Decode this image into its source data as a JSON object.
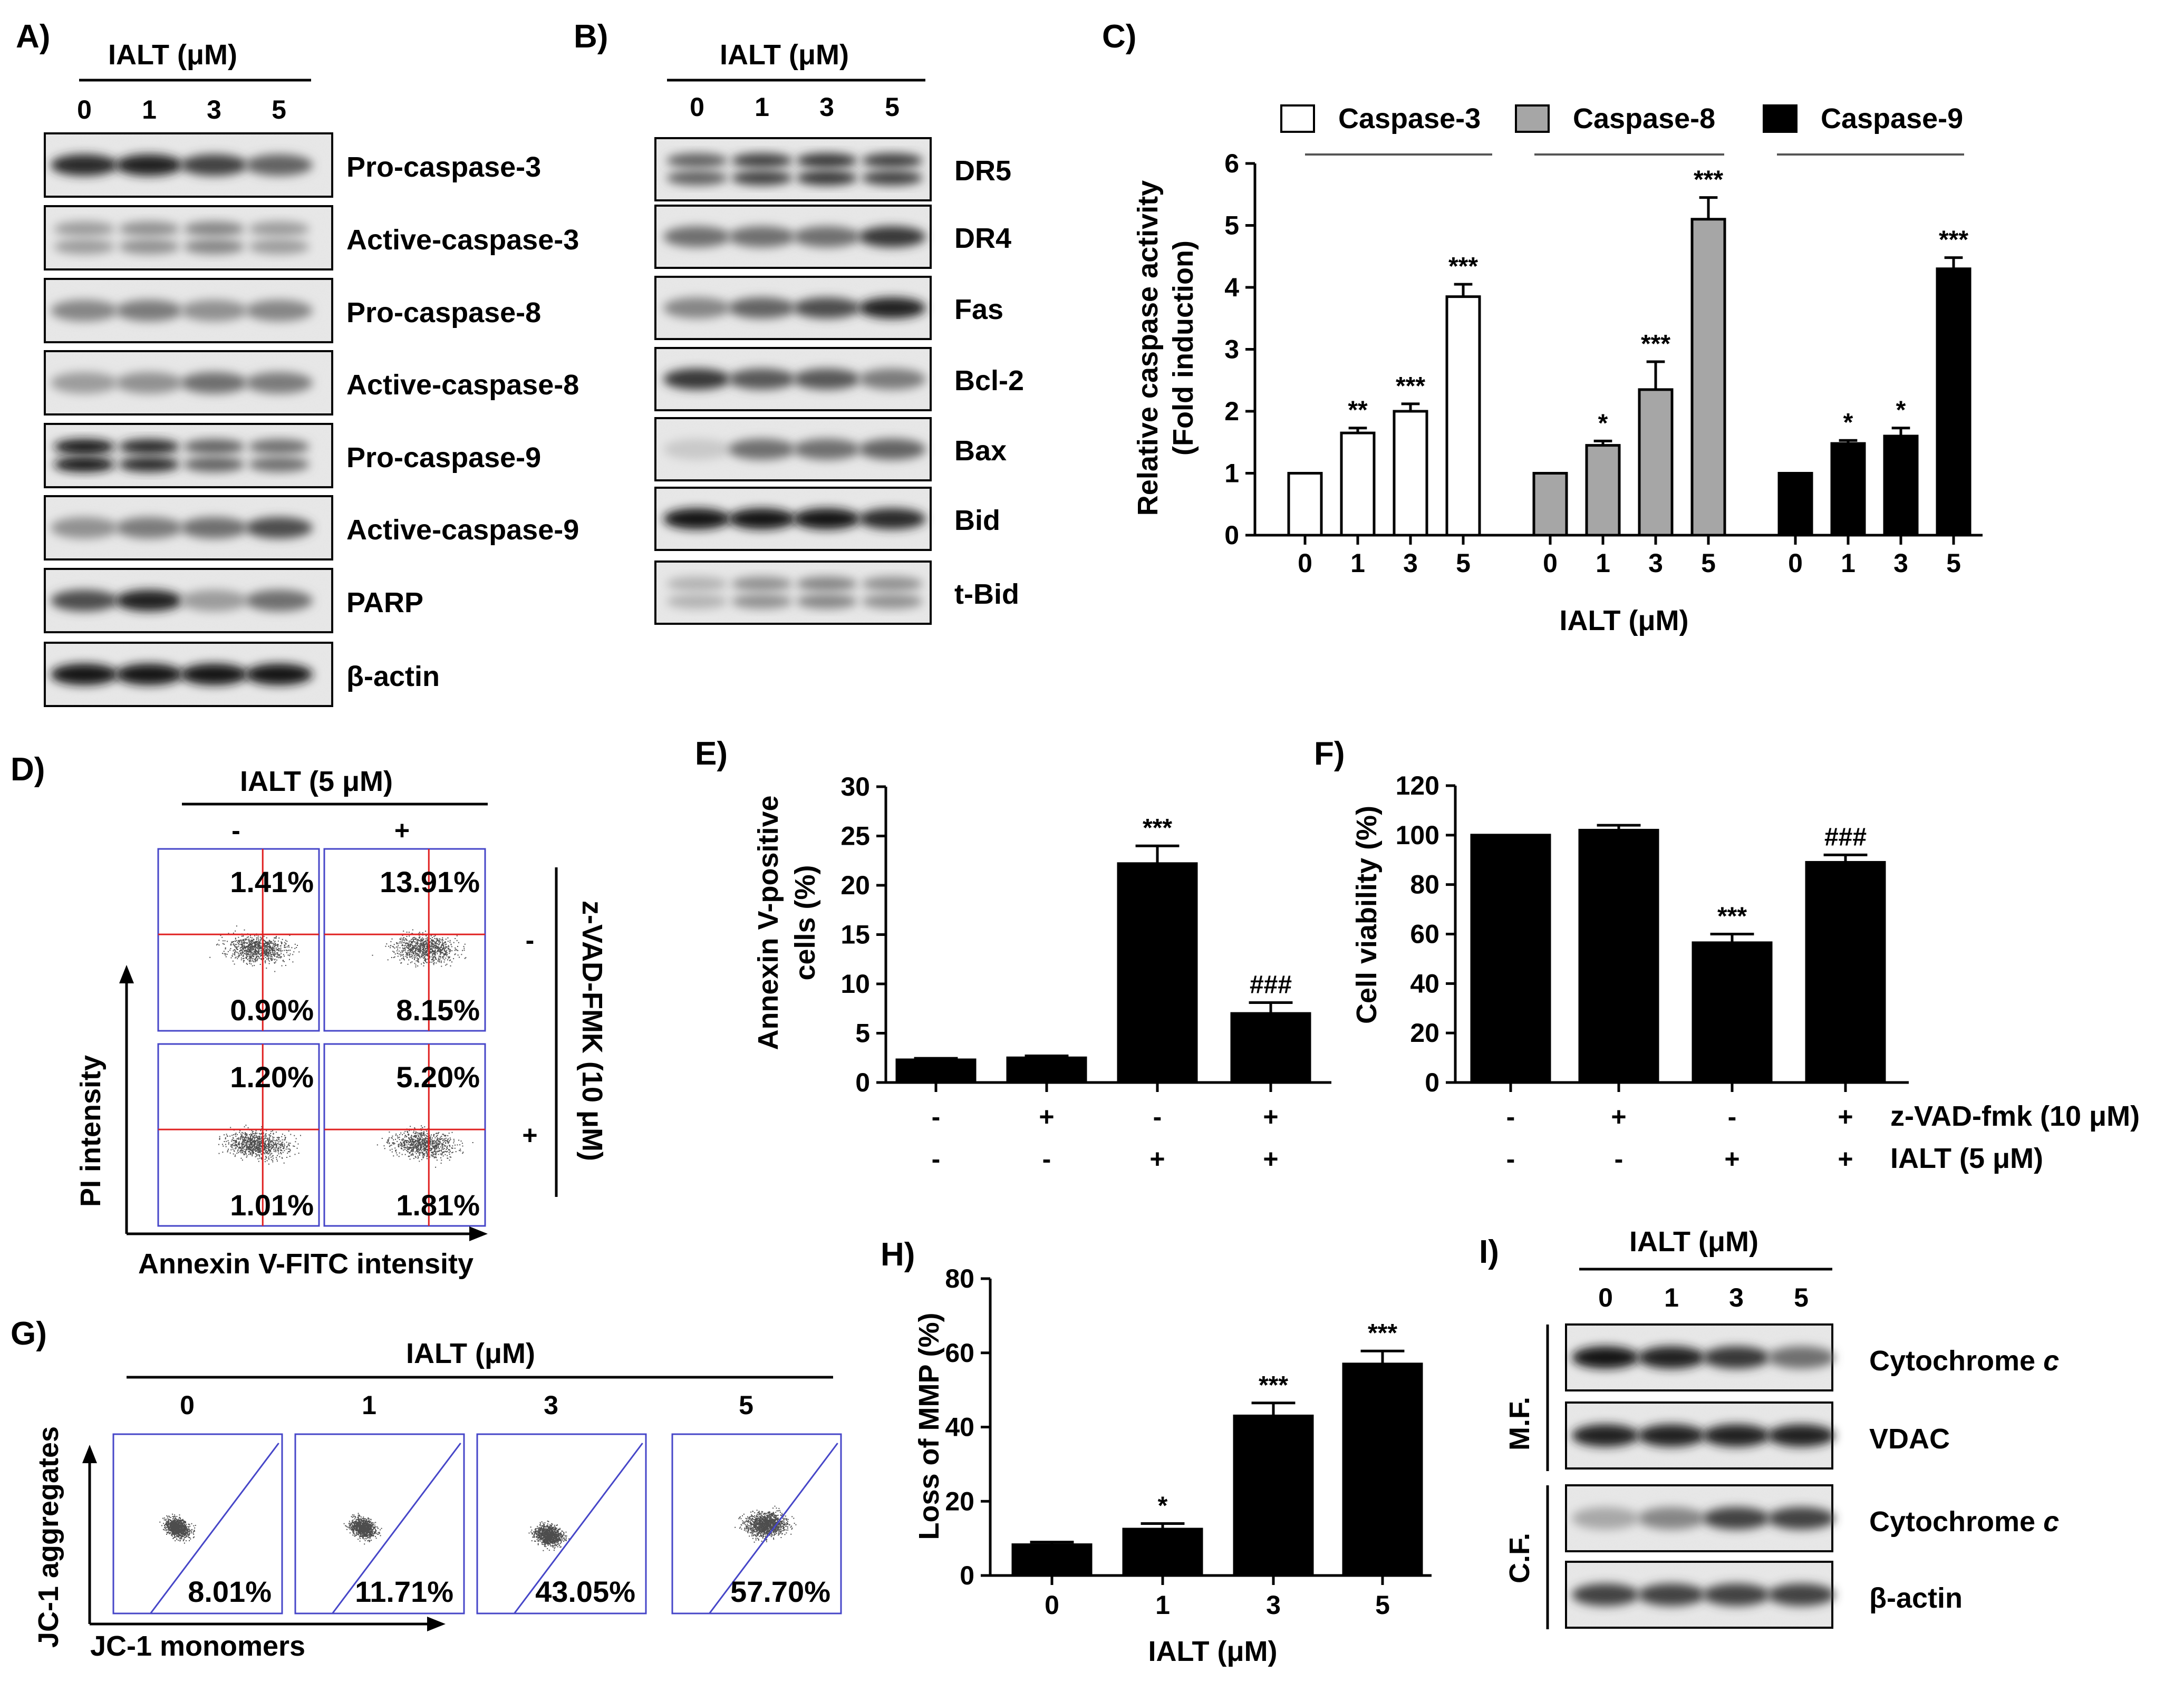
{
  "panel_labels": {
    "A": "A)",
    "B": "B)",
    "C": "C)",
    "D": "D)",
    "E": "E)",
    "F": "F)",
    "G": "G)",
    "H": "H)",
    "I": "I)"
  },
  "panelA": {
    "treatment": "IALT (μM)",
    "doses": [
      "0",
      "1",
      "3",
      "5"
    ],
    "bands": [
      "Pro-caspase-3",
      "Active-caspase-3",
      "Pro-caspase-8",
      "Active-caspase-8",
      "Pro-caspase-9",
      "Active-caspase-9",
      "PARP",
      "β-actin"
    ]
  },
  "panelB": {
    "treatment": "IALT (μM)",
    "doses": [
      "0",
      "1",
      "3",
      "5"
    ],
    "bands": [
      "DR5",
      "DR4",
      "Fas",
      "Bcl-2",
      "Bax",
      "Bid",
      "t-Bid"
    ]
  },
  "panelD": {
    "treatment": "IALT (5 μM)",
    "cols": [
      "-",
      "+"
    ],
    "rows": [
      "-",
      "+"
    ],
    "side_label": "z-VAD-FMK (10 μM)",
    "ylabel": "PI intensity",
    "xlabel": "Annexin V-FITC intensity",
    "quadrants": [
      {
        "upper": "1.41%",
        "lower": "0.90%"
      },
      {
        "upper": "13.91%",
        "lower": "8.15%"
      },
      {
        "upper": "1.20%",
        "lower": "1.01%"
      },
      {
        "upper": "5.20%",
        "lower": "1.81%"
      }
    ]
  },
  "panelG": {
    "treatment": "IALT (μM)",
    "doses": [
      "0",
      "1",
      "3",
      "5"
    ],
    "values": [
      "8.01%",
      "11.71%",
      "43.05%",
      "57.70%"
    ],
    "ylabel": "JC-1 aggregates",
    "xlabel": "JC-1 monomers"
  },
  "panelI": {
    "treatment": "IALT (μM)",
    "doses": [
      "0",
      "1",
      "3",
      "5"
    ],
    "groups": [
      "M.F.",
      "C.F."
    ],
    "bands": [
      "Cytochrome",
      "VDAC",
      "Cytochrome",
      "β-actin"
    ],
    "italic_suffix": "c"
  },
  "row_labels": {
    "zvad": "z-VAD-fmk (10 μM)",
    "ialt": "IALT (5 μM)"
  },
  "sign_rows": {
    "zvad": [
      "-",
      "+",
      "-",
      "+"
    ],
    "ialt": [
      "-",
      "-",
      "+",
      "+"
    ]
  },
  "chart_data": [
    {
      "id": "C",
      "type": "bar",
      "title": "",
      "ylabel": "Relative caspase activity (Fold induction)",
      "ylabel_lines": [
        "Relative caspase activity",
        "(Fold induction)"
      ],
      "xlabel": "IALT (μM)",
      "ylim": [
        0,
        6
      ],
      "yticks": [
        "0",
        "1",
        "2",
        "3",
        "4",
        "5",
        "6"
      ],
      "categories": [
        "0",
        "1",
        "3",
        "5"
      ],
      "series": [
        {
          "name": "Caspase-3",
          "color": "#ffffff",
          "values": [
            1.0,
            1.65,
            2.0,
            3.85
          ],
          "errors": [
            0,
            0.08,
            0.12,
            0.2
          ],
          "sig": [
            "",
            "**",
            "***",
            "***"
          ]
        },
        {
          "name": "Caspase-8",
          "color": "#a6a6a6",
          "values": [
            1.0,
            1.45,
            2.35,
            5.1
          ],
          "errors": [
            0,
            0.07,
            0.45,
            0.35
          ],
          "sig": [
            "",
            "*",
            "***",
            "***"
          ]
        },
        {
          "name": "Caspase-9",
          "color": "#000000",
          "values": [
            1.0,
            1.48,
            1.6,
            4.3
          ],
          "errors": [
            0,
            0.05,
            0.13,
            0.18
          ],
          "sig": [
            "",
            "*",
            "*",
            "***"
          ]
        }
      ]
    },
    {
      "id": "E",
      "type": "bar",
      "ylabel": "Annexin V-positive cells (%)",
      "ylabel_lines": [
        "Annexin V-positive",
        "cells (%)"
      ],
      "ylim": [
        0,
        30
      ],
      "yticks": [
        "0",
        "5",
        "10",
        "15",
        "20",
        "25",
        "30"
      ],
      "values": [
        2.3,
        2.5,
        22.2,
        7.0
      ],
      "errors": [
        0.15,
        0.2,
        1.8,
        1.1
      ],
      "sig": [
        "",
        "",
        "***",
        "###"
      ]
    },
    {
      "id": "F",
      "type": "bar",
      "ylabel": "Cell viability (%)",
      "ylim": [
        0,
        120
      ],
      "yticks": [
        "0",
        "20",
        "40",
        "60",
        "80",
        "100",
        "120"
      ],
      "values": [
        100,
        102,
        56.5,
        89
      ],
      "errors": [
        0,
        2,
        3.5,
        3
      ],
      "sig": [
        "",
        "",
        "***",
        "###"
      ]
    },
    {
      "id": "H",
      "type": "bar",
      "ylabel": "Loss of MMP (%)",
      "xlabel": "IALT (μM)",
      "ylim": [
        0,
        80
      ],
      "yticks": [
        "0",
        "20",
        "40",
        "60",
        "80"
      ],
      "categories": [
        "0",
        "1",
        "3",
        "5"
      ],
      "values": [
        8.3,
        12.5,
        43.0,
        57.0
      ],
      "errors": [
        0.7,
        1.5,
        3.5,
        3.5
      ],
      "sig": [
        "",
        "*",
        "***",
        "***"
      ]
    }
  ]
}
